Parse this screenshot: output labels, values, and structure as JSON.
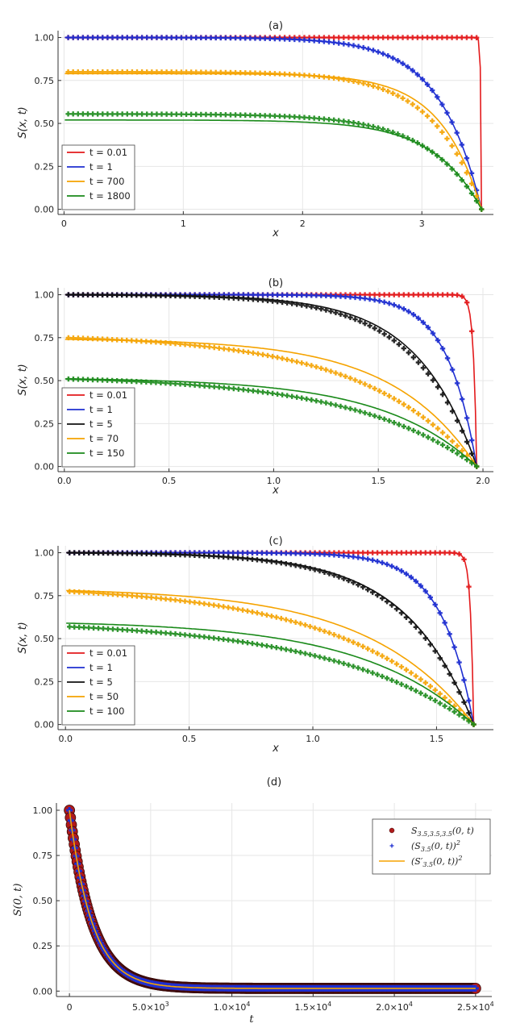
{
  "chart_data": [
    {
      "panel": "a",
      "type": "line",
      "title": "(a)",
      "xlabel": "x",
      "ylabel": "S(x, t)",
      "xlim": [
        -0.05,
        3.6
      ],
      "ylim": [
        -0.03,
        1.04
      ],
      "xticks": [
        0,
        1,
        2,
        3
      ],
      "xtick_labels": [
        "0",
        "1",
        "2",
        "3"
      ],
      "yticks": [
        0,
        0.25,
        0.5,
        0.75,
        1.0
      ],
      "ytick_labels": [
        "0.00",
        "0.25",
        "0.50",
        "0.75",
        "1.00"
      ],
      "L": 3.5,
      "legend_position": "bottom-left",
      "series": [
        {
          "name": "t = 0.01",
          "color": "#e31a1c",
          "A": 1.0,
          "decay": 0.006,
          "line_A": 1.0,
          "line_decay": 0.006
        },
        {
          "name": "t = 1",
          "color": "#1f2fd1",
          "A": 1.0,
          "decay": 0.35,
          "line_A": 1.0,
          "line_decay": 0.35
        },
        {
          "name": "t = 700",
          "color": "#f5a300",
          "A": 0.8,
          "decay": 0.4,
          "line_A": 0.79,
          "line_decay": 0.34
        },
        {
          "name": "t = 1800",
          "color": "#1a8a1a",
          "A": 0.555,
          "decay": 0.45,
          "line_A": 0.52,
          "line_decay": 0.4
        }
      ]
    },
    {
      "panel": "b",
      "type": "line",
      "title": "(b)",
      "xlabel": "x",
      "ylabel": "S(x, t)",
      "xlim": [
        -0.03,
        2.05
      ],
      "ylim": [
        -0.03,
        1.04
      ],
      "xticks": [
        0,
        0.5,
        1.0,
        1.5,
        2.0
      ],
      "xtick_labels": [
        "0.0",
        "0.5",
        "1.0",
        "1.5",
        "2.0"
      ],
      "yticks": [
        0,
        0.25,
        0.5,
        0.75,
        1.0
      ],
      "ytick_labels": [
        "0.00",
        "0.25",
        "0.50",
        "0.75",
        "1.00"
      ],
      "L": 1.97,
      "legend_position": "bottom-left",
      "series": [
        {
          "name": "t = 0.01",
          "color": "#e31a1c",
          "A": 1.0,
          "decay": 0.015,
          "line_A": 1.0,
          "line_decay": 0.015
        },
        {
          "name": "t = 1",
          "color": "#1f2fd1",
          "A": 1.0,
          "decay": 0.14,
          "line_A": 1.0,
          "line_decay": 0.14
        },
        {
          "name": "t = 5",
          "color": "#111111",
          "A": 1.0,
          "decay": 0.3,
          "line_A": 1.0,
          "line_decay": 0.28
        },
        {
          "name": "t = 70",
          "color": "#f5a300",
          "A": 0.75,
          "decay": 0.55,
          "line_A": 0.74,
          "line_decay": 0.4
        },
        {
          "name": "t = 150",
          "color": "#1a8a1a",
          "A": 0.51,
          "decay": 0.6,
          "line_A": 0.51,
          "line_decay": 0.45
        }
      ]
    },
    {
      "panel": "c",
      "type": "line",
      "title": "(c)",
      "xlabel": "x",
      "ylabel": "S(x, t)",
      "xlim": [
        -0.03,
        1.73
      ],
      "ylim": [
        -0.03,
        1.04
      ],
      "xticks": [
        0,
        0.5,
        1.0,
        1.5
      ],
      "xtick_labels": [
        "0.0",
        "0.5",
        "1.0",
        "1.5"
      ],
      "yticks": [
        0,
        0.25,
        0.5,
        0.75,
        1.0
      ],
      "ytick_labels": [
        "0.00",
        "0.25",
        "0.50",
        "0.75",
        "1.00"
      ],
      "L": 1.65,
      "legend_position": "bottom-left",
      "series": [
        {
          "name": "t = 0.01",
          "color": "#e31a1c",
          "A": 1.0,
          "decay": 0.012,
          "line_A": 1.0,
          "line_decay": 0.012
        },
        {
          "name": "t = 1",
          "color": "#1f2fd1",
          "A": 1.0,
          "decay": 0.13,
          "line_A": 1.0,
          "line_decay": 0.13
        },
        {
          "name": "t = 5",
          "color": "#111111",
          "A": 1.0,
          "decay": 0.28,
          "line_A": 1.0,
          "line_decay": 0.27
        },
        {
          "name": "t = 50",
          "color": "#f5a300",
          "A": 0.775,
          "decay": 0.55,
          "line_A": 0.78,
          "line_decay": 0.42
        },
        {
          "name": "t = 100",
          "color": "#1a8a1a",
          "A": 0.57,
          "decay": 0.6,
          "line_A": 0.59,
          "line_decay": 0.45
        }
      ]
    },
    {
      "panel": "d",
      "type": "scatter",
      "title": "(d)",
      "xlabel": "t",
      "ylabel": "S(0, t)",
      "xlim": [
        -800,
        26000
      ],
      "ylim": [
        -0.03,
        1.04
      ],
      "xticks": [
        0,
        5000,
        10000,
        15000,
        20000,
        25000
      ],
      "xtick_labels": [
        {
          "mant": "0",
          "exp": ""
        },
        {
          "mant": "5.0×10",
          "exp": "3"
        },
        {
          "mant": "1.0×10",
          "exp": "4"
        },
        {
          "mant": "1.5×10",
          "exp": "4"
        },
        {
          "mant": "2.0×10",
          "exp": "4"
        },
        {
          "mant": "2.5×10",
          "exp": "4"
        }
      ],
      "yticks": [
        0,
        0.25,
        0.5,
        0.75,
        1.0
      ],
      "ytick_labels": [
        "0.00",
        "0.25",
        "0.50",
        "0.75",
        "1.00"
      ],
      "tau": 1400,
      "t_end": 25000,
      "legend_position": "top-right",
      "series": [
        {
          "name_base": "S",
          "name_sub": "3.5,3.5,3.5",
          "name_args": "(0, t)",
          "name_sup": "",
          "color": "#b11a1a",
          "marker": "circle"
        },
        {
          "name_base": "(S",
          "name_sub": "3.5",
          "name_args": "(0, t))",
          "name_sup": "2",
          "color": "#1f2fd1",
          "marker": "plus"
        },
        {
          "name_base": "(S′",
          "name_sub": "3.5",
          "name_args": "(0, t))",
          "name_sup": "2",
          "color": "#f5a300",
          "marker": "line"
        }
      ]
    }
  ]
}
